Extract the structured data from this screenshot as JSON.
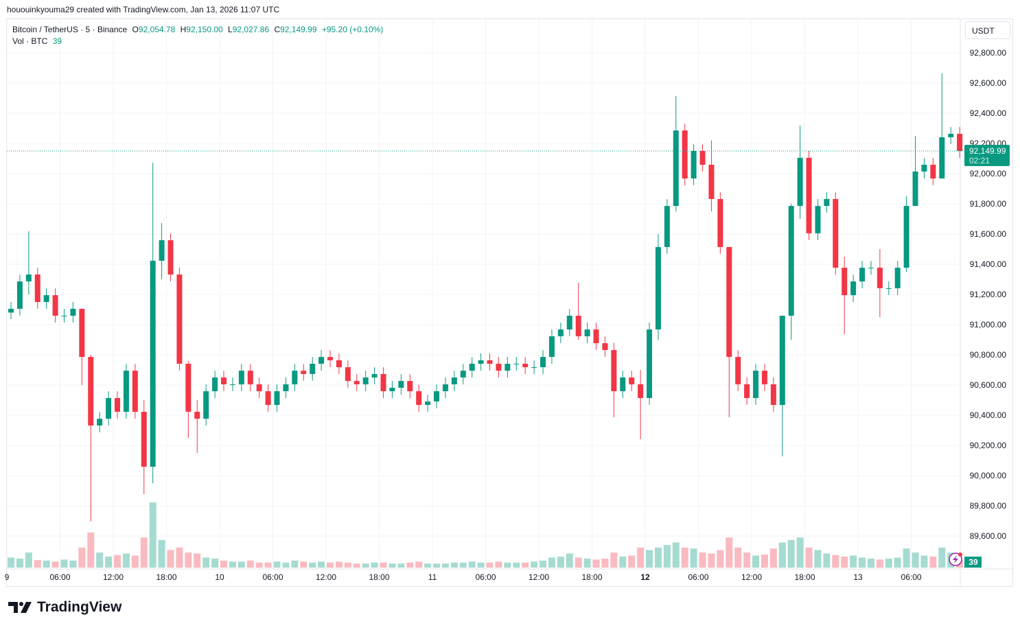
{
  "credit": "hououinkyouma29 created with TradingView.com, Jan 13, 2026 11:07 UTC",
  "legend": {
    "symbol": "Bitcoin / TetherUS · 5 · Binance",
    "open_label": "O",
    "open": "92,054.78",
    "high_label": "H",
    "high": "92,150.00",
    "low_label": "L",
    "low": "92,027.86",
    "close_label": "C",
    "close": "92,149.99",
    "change": "+95.20 (+0.10%)",
    "volume_label": "Vol · BTC",
    "volume": "39"
  },
  "currency_button": "USDT",
  "last_price_label": {
    "price": "92,149.99",
    "countdown": "02:21"
  },
  "volume_badge": "39",
  "alert_icon": "lightning-bolt-icon",
  "brand": "TradingView",
  "colors": {
    "up": "#089981",
    "down": "#f23645",
    "up_volume": "#8fd2c6",
    "down_volume": "#f7a9b0",
    "grid": "#f0f3fa"
  },
  "chart_data": {
    "type": "candlestick",
    "title": "Bitcoin / TetherUS · 5 · Binance",
    "grid": true,
    "ylim": [
      89400,
      92900
    ],
    "y_ticks": [
      "92,800.00",
      "92,600.00",
      "92,400.00",
      "92,200.00",
      "92,000.00",
      "91,800.00",
      "91,600.00",
      "91,400.00",
      "91,200.00",
      "91,000.00",
      "90,800.00",
      "90,600.00",
      "90,400.00",
      "90,200.00",
      "90,000.00",
      "89,800.00",
      "89,600.00"
    ],
    "y_tick_values": [
      92800,
      92600,
      92400,
      92200,
      92000,
      91800,
      91600,
      91400,
      91200,
      91000,
      90800,
      90600,
      90400,
      90200,
      90000,
      89800,
      89600
    ],
    "x_ticks": [
      {
        "label": "9",
        "hour": 0
      },
      {
        "label": "06:00",
        "hour": 6
      },
      {
        "label": "12:00",
        "hour": 12
      },
      {
        "label": "18:00",
        "hour": 18
      },
      {
        "label": "10",
        "hour": 24
      },
      {
        "label": "06:00",
        "hour": 30
      },
      {
        "label": "12:00",
        "hour": 36
      },
      {
        "label": "18:00",
        "hour": 42
      },
      {
        "label": "11",
        "hour": 48
      },
      {
        "label": "06:00",
        "hour": 54
      },
      {
        "label": "12:00",
        "hour": 60
      },
      {
        "label": "18:00",
        "hour": 66
      },
      {
        "label": "12",
        "hour": 72,
        "bold": true
      },
      {
        "label": "06:00",
        "hour": 78
      },
      {
        "label": "12:00",
        "hour": 84
      },
      {
        "label": "18:00",
        "hour": 90
      },
      {
        "label": "13",
        "hour": 96
      },
      {
        "label": "06:00",
        "hour": 102
      }
    ],
    "start": "Jan 9 00:00",
    "interval": "1h",
    "last_close": 92149.99,
    "first_open": 91080,
    "closes": [
      91105,
      91286,
      91332,
      91150,
      91195,
      91059,
      91059,
      91105,
      90786,
      90332,
      90377,
      90514,
      90423,
      90695,
      90423,
      90059,
      91423,
      91559,
      91332,
      90741,
      90423,
      90377,
      90559,
      90650,
      90605,
      90605,
      90695,
      90605,
      90559,
      90468,
      90559,
      90605,
      90695,
      90673,
      90741,
      90786,
      90764,
      90718,
      90627,
      90605,
      90650,
      90673,
      90559,
      90582,
      90627,
      90559,
      90468,
      90491,
      90559,
      90605,
      90650,
      90695,
      90741,
      90764,
      90741,
      90695,
      90741,
      90741,
      90718,
      90718,
      90786,
      90923,
      90968,
      91059,
      90923,
      90968,
      90877,
      90832,
      90559,
      90650,
      90605,
      90514,
      90968,
      91514,
      91786,
      92286,
      91968,
      92150,
      92059,
      91832,
      91514,
      90786,
      90605,
      90514,
      90695,
      90605,
      90468,
      91059,
      91786,
      92105,
      91605,
      91786,
      91832,
      91377,
      91195,
      91286,
      91377,
      91377,
      91241,
      91241,
      91377,
      91786,
      92014,
      92059,
      91968,
      92241,
      92264,
      92149.99
    ],
    "extremes": {
      "2": [
        91618,
        91200
      ],
      "8": [
        91000,
        90600
      ],
      "9": [
        90800,
        89696
      ],
      "15": [
        90500,
        89877
      ],
      "16": [
        92073,
        89950
      ],
      "17": [
        91673,
        91300
      ],
      "20": [
        90760,
        90250
      ],
      "21": [
        90500,
        90150
      ],
      "64": [
        91277,
        90900
      ],
      "68": [
        90880,
        90386
      ],
      "71": [
        90700,
        90241
      ],
      "73": [
        91600,
        90900
      ],
      "75": [
        92514,
        91750
      ],
      "79": [
        92220,
        91750
      ],
      "81": [
        91500,
        90386
      ],
      "87": [
        90700,
        90127
      ],
      "88": [
        91800,
        90900
      ],
      "89": [
        92318,
        91700
      ],
      "94": [
        91450,
        90936
      ],
      "98": [
        91500,
        91050
      ],
      "101": [
        91850,
        91350
      ],
      "102": [
        92250,
        91800
      ],
      "105": [
        92664,
        92000
      ]
    },
    "volumes": [
      20,
      18,
      30,
      15,
      14,
      12,
      16,
      14,
      40,
      70,
      30,
      22,
      25,
      28,
      24,
      60,
      130,
      55,
      35,
      40,
      30,
      28,
      20,
      18,
      14,
      12,
      12,
      14,
      10,
      10,
      12,
      10,
      14,
      12,
      10,
      12,
      10,
      12,
      10,
      8,
      8,
      10,
      10,
      8,
      8,
      10,
      12,
      8,
      8,
      8,
      10,
      10,
      12,
      10,
      10,
      12,
      10,
      10,
      10,
      12,
      14,
      20,
      22,
      28,
      20,
      18,
      16,
      18,
      30,
      22,
      24,
      40,
      35,
      40,
      45,
      50,
      40,
      38,
      30,
      28,
      35,
      60,
      40,
      30,
      24,
      26,
      38,
      50,
      55,
      60,
      40,
      35,
      28,
      25,
      22,
      24,
      20,
      18,
      16,
      18,
      20,
      38,
      30,
      24,
      22,
      40,
      30,
      16
    ]
  }
}
